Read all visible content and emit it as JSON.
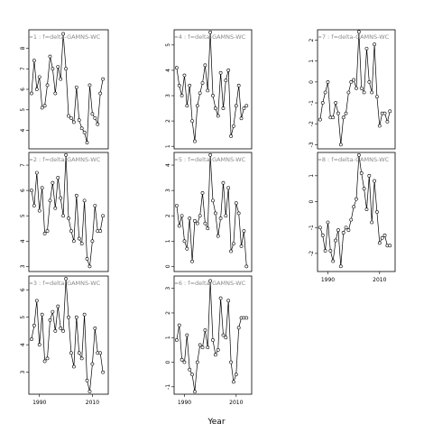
{
  "chart_data": {
    "type": "line",
    "xlabel": "Year",
    "xlim": [
      1986,
      2016
    ],
    "x_ticks": [
      1990,
      2010
    ],
    "series_color": "#000000",
    "title_color": "#8a8a8a",
    "panels": [
      {
        "id": 1,
        "title": "s=1 : f=delta-GAMNS-WC",
        "ylim": [
          3.1,
          8.9
        ],
        "yticks": [
          4,
          5,
          6,
          7,
          8
        ],
        "x": [
          1987,
          1988,
          1989,
          1990,
          1991,
          1992,
          1993,
          1994,
          1995,
          1996,
          1997,
          1998,
          1999,
          2000,
          2001,
          2002,
          2003,
          2004,
          2005,
          2006,
          2007,
          2008,
          2009,
          2010,
          2011,
          2012,
          2013,
          2014
        ],
        "values": [
          5.8,
          7.4,
          6.0,
          6.6,
          5.1,
          5.2,
          6.2,
          7.6,
          7.0,
          5.8,
          7.1,
          6.5,
          8.7,
          7.0,
          4.7,
          4.6,
          4.4,
          6.1,
          4.5,
          4.1,
          3.9,
          3.4,
          6.2,
          4.8,
          4.6,
          4.3,
          5.8,
          6.5
        ]
      },
      {
        "id": 2,
        "title": "s=2 : f=delta-GAMNS-WC",
        "ylim": [
          2.8,
          7.5
        ],
        "yticks": [
          3,
          4,
          5,
          6,
          7
        ],
        "x": [
          1987,
          1988,
          1989,
          1990,
          1991,
          1992,
          1993,
          1994,
          1995,
          1996,
          1997,
          1998,
          1999,
          2000,
          2001,
          2002,
          2003,
          2004,
          2005,
          2006,
          2007,
          2008,
          2009,
          2010,
          2011,
          2012,
          2013,
          2014
        ],
        "values": [
          6.0,
          5.4,
          6.7,
          5.2,
          6.1,
          4.3,
          4.4,
          5.6,
          6.3,
          5.3,
          6.5,
          5.7,
          5.0,
          7.4,
          4.9,
          4.4,
          4.0,
          5.8,
          4.1,
          3.9,
          5.6,
          3.3,
          3.0,
          4.0,
          5.4,
          4.4,
          4.4,
          5.0
        ]
      },
      {
        "id": 3,
        "title": "s=3 : f=delta-GAMNS-WC",
        "ylim": [
          2.2,
          6.5
        ],
        "yticks": [
          3,
          4,
          5,
          6
        ],
        "x": [
          1987,
          1988,
          1989,
          1990,
          1991,
          1992,
          1993,
          1994,
          1995,
          1996,
          1997,
          1998,
          1999,
          2000,
          2001,
          2002,
          2003,
          2004,
          2005,
          2006,
          2007,
          2008,
          2009,
          2010,
          2011,
          2012,
          2013,
          2014
        ],
        "values": [
          4.2,
          4.7,
          5.6,
          4.0,
          5.1,
          3.4,
          3.5,
          4.9,
          5.2,
          4.5,
          5.4,
          4.6,
          4.5,
          6.4,
          5.0,
          3.7,
          3.2,
          5.0,
          3.7,
          3.5,
          5.1,
          2.7,
          2.3,
          3.3,
          4.6,
          3.7,
          3.7,
          3.0
        ]
      },
      {
        "id": 4,
        "title": "s=4 : f=delta-GAMNS-WC",
        "ylim": [
          0.9,
          5.6
        ],
        "yticks": [
          1,
          2,
          3,
          4,
          5
        ],
        "x": [
          1987,
          1988,
          1989,
          1990,
          1991,
          1992,
          1993,
          1994,
          1995,
          1996,
          1997,
          1998,
          1999,
          2000,
          2001,
          2002,
          2003,
          2004,
          2005,
          2006,
          2007,
          2008,
          2009,
          2010,
          2011,
          2012,
          2013,
          2014
        ],
        "values": [
          4.1,
          3.4,
          3.0,
          3.8,
          2.6,
          3.4,
          2.0,
          1.2,
          2.6,
          3.1,
          3.5,
          4.2,
          3.2,
          5.5,
          3.0,
          2.5,
          2.2,
          3.9,
          2.5,
          3.6,
          4.0,
          1.4,
          1.8,
          2.6,
          3.4,
          2.1,
          2.5,
          2.6
        ]
      },
      {
        "id": 5,
        "title": "s=5 : f=delta-GAMNS-WC",
        "ylim": [
          -0.2,
          4.5
        ],
        "yticks": [
          0,
          1,
          2,
          3,
          4
        ],
        "x": [
          1987,
          1988,
          1989,
          1990,
          1991,
          1992,
          1993,
          1994,
          1995,
          1996,
          1997,
          1998,
          1999,
          2000,
          2001,
          2002,
          2003,
          2004,
          2005,
          2006,
          2007,
          2008,
          2009,
          2010,
          2011,
          2012,
          2013,
          2014
        ],
        "values": [
          2.4,
          1.6,
          2.0,
          1.0,
          0.7,
          1.9,
          0.2,
          1.8,
          1.7,
          2.0,
          2.9,
          1.7,
          1.5,
          4.4,
          2.6,
          2.1,
          1.2,
          1.9,
          3.3,
          2.0,
          3.1,
          0.6,
          0.9,
          2.5,
          2.1,
          0.8,
          1.4,
          0.0
        ]
      },
      {
        "id": 6,
        "title": "s=6 : f=delta-GAMNS-WC",
        "ylim": [
          -1.3,
          3.5
        ],
        "yticks": [
          -1,
          0,
          1,
          2,
          3
        ],
        "x": [
          1987,
          1988,
          1989,
          1990,
          1991,
          1992,
          1993,
          1994,
          1995,
          1996,
          1997,
          1998,
          1999,
          2000,
          2001,
          2002,
          2003,
          2004,
          2005,
          2006,
          2007,
          2008,
          2009,
          2010,
          2011,
          2012,
          2013,
          2014
        ],
        "values": [
          0.9,
          1.5,
          0.1,
          0.0,
          1.1,
          -0.3,
          -0.5,
          -1.2,
          0.0,
          0.7,
          0.6,
          1.3,
          0.6,
          3.3,
          0.9,
          0.3,
          0.5,
          2.6,
          1.1,
          1.0,
          2.5,
          0.0,
          -0.8,
          -0.5,
          1.4,
          1.8,
          1.8,
          1.8
        ]
      },
      {
        "id": 7,
        "title": "s=7 : f=delta-GAMNS-WC",
        "ylim": [
          -3.2,
          2.5
        ],
        "yticks": [
          -3,
          -2,
          -1,
          0,
          1,
          2
        ],
        "x": [
          1987,
          1988,
          1989,
          1990,
          1991,
          1992,
          1993,
          1994,
          1995,
          1996,
          1997,
          1998,
          1999,
          2000,
          2001,
          2002,
          2003,
          2004,
          2005,
          2006,
          2007,
          2008,
          2009,
          2010,
          2011,
          2012,
          2013,
          2014
        ],
        "values": [
          -1.8,
          -1.0,
          -0.5,
          0.0,
          -1.7,
          -1.7,
          -1.0,
          -1.5,
          -3.0,
          -1.7,
          -1.5,
          -0.5,
          0.0,
          0.1,
          -0.3,
          2.4,
          -0.3,
          -0.5,
          1.6,
          0.0,
          -0.5,
          1.8,
          -0.7,
          -2.1,
          -1.5,
          -1.5,
          -1.9,
          -1.4
        ]
      },
      {
        "id": 8,
        "title": "s=8 : f=delta-GAMNS-WC",
        "ylim": [
          -2.7,
          1.9
        ],
        "yticks": [
          -2,
          -1,
          0,
          1
        ],
        "x": [
          1987,
          1988,
          1989,
          1990,
          1991,
          1992,
          1993,
          1994,
          1995,
          1996,
          1997,
          1998,
          1999,
          2000,
          2001,
          2002,
          2003,
          2004,
          2005,
          2006,
          2007,
          2008,
          2009,
          2010,
          2011,
          2012,
          2013,
          2014
        ],
        "values": [
          -1.0,
          -1.3,
          -1.9,
          -0.8,
          -1.9,
          -2.3,
          -1.5,
          -1.1,
          -2.5,
          -1.2,
          -1.0,
          -1.1,
          -0.7,
          -0.2,
          0.1,
          1.8,
          1.1,
          0.5,
          -0.3,
          1.0,
          -0.8,
          0.8,
          -0.4,
          -1.6,
          -1.4,
          -1.3,
          -1.7,
          -1.7
        ]
      }
    ]
  }
}
